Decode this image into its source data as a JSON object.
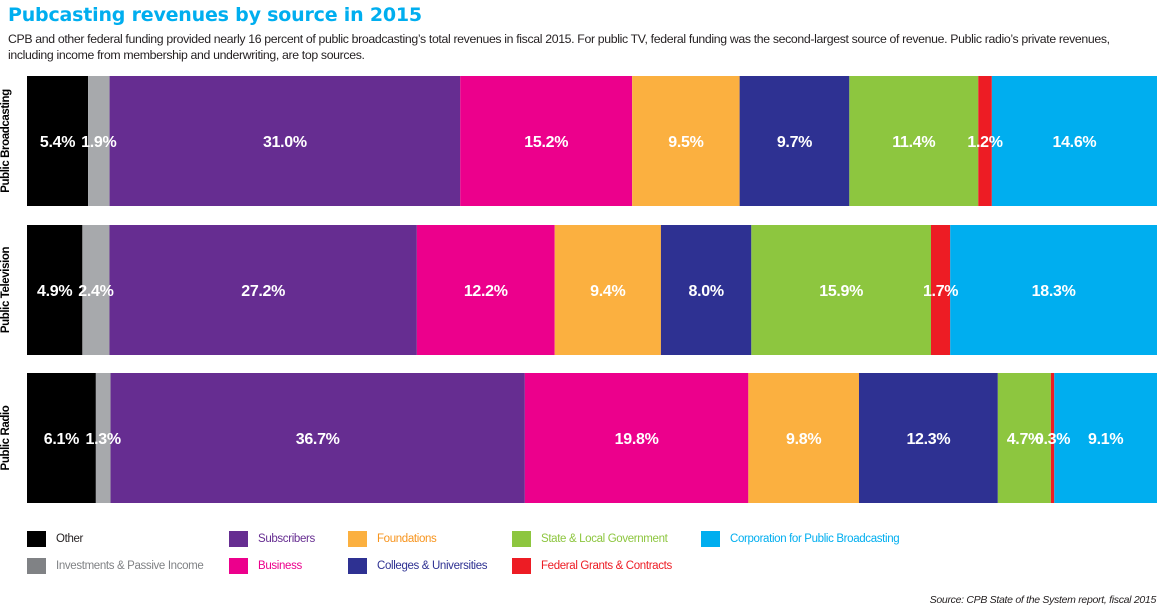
{
  "header": {
    "title": "Pubcasting revenues by source in 2015",
    "subtitle": "CPB and other federal funding provided nearly 16 percent of public broadcasting’s total revenues in fiscal 2015. For public TV, federal funding was the second-largest source of revenue. Public radio’s private revenues, including income from membership and underwriting, are top sources."
  },
  "footer": {
    "source": "Source: CPB State of the System report, fiscal 2015"
  },
  "chart_data": {
    "type": "bar",
    "orientation": "horizontal",
    "stacked": true,
    "normalized_percent": true,
    "title": "Pubcasting revenues by source in 2015",
    "xlabel": "",
    "ylabel": "",
    "categories": [
      "Public Broadcasting",
      "Public Television",
      "Public Radio"
    ],
    "series": [
      {
        "name": "Other",
        "color": "#000000",
        "values": [
          5.4,
          4.9,
          6.1
        ]
      },
      {
        "name": "Investments & Passive Income",
        "color": "#a7a9ac",
        "values": [
          1.9,
          2.4,
          1.3
        ]
      },
      {
        "name": "Subscribers",
        "color": "#662d91",
        "values": [
          31.0,
          27.2,
          36.7
        ]
      },
      {
        "name": "Business",
        "color": "#ec008c",
        "values": [
          15.2,
          12.2,
          19.8
        ]
      },
      {
        "name": "Foundations",
        "color": "#fbb040",
        "values": [
          9.5,
          9.4,
          9.8
        ]
      },
      {
        "name": "Colleges & Universities",
        "color": "#2e3192",
        "values": [
          9.7,
          8.0,
          12.3
        ]
      },
      {
        "name": "State & Local Government",
        "color": "#8dc63f",
        "values": [
          11.4,
          15.9,
          4.7
        ]
      },
      {
        "name": "Federal Grants & Contracts",
        "color": "#ed1c24",
        "values": [
          1.2,
          1.7,
          0.3
        ]
      },
      {
        "name": "Corporation for Public Broadcasting",
        "color": "#00aeef",
        "values": [
          14.6,
          18.3,
          9.1
        ]
      }
    ],
    "data_labels": [
      [
        "5.4%",
        "1.9%",
        "31.0%",
        "15.2%",
        "9.5%",
        "9.7%",
        "11.4%",
        "1.2%",
        "14.6%"
      ],
      [
        "4.9%",
        "2.4%",
        "27.2%",
        "12.2%",
        "9.4%",
        "8.0%",
        "15.9%",
        "1.7%",
        "18.3%"
      ],
      [
        "6.1%",
        "1.3%",
        "36.7%",
        "19.8%",
        "9.8%",
        "12.3%",
        "4.7%",
        "0.3%",
        "9.1%"
      ]
    ],
    "legend": {
      "placement": "bottom",
      "entries": [
        {
          "name": "Other",
          "color": "#000000",
          "label_color": "#231f20"
        },
        {
          "name": "Investments & Passive Income",
          "color": "#808285",
          "label_color": "#808285"
        },
        {
          "name": "Subscribers",
          "color": "#662d91",
          "label_color": "#662d91"
        },
        {
          "name": "Business",
          "color": "#ec008c",
          "label_color": "#ec008c"
        },
        {
          "name": "Foundations",
          "color": "#fbb040",
          "label_color": "#f7941d"
        },
        {
          "name": "Colleges & Universities",
          "color": "#2e3192",
          "label_color": "#2e3192"
        },
        {
          "name": "State & Local Government",
          "color": "#8dc63f",
          "label_color": "#8dc63f"
        },
        {
          "name": "Federal Grants & Contracts",
          "color": "#ed1c24",
          "label_color": "#ed1c24"
        },
        {
          "name": "Corporation for Public Broadcasting",
          "color": "#00aeef",
          "label_color": "#00aeef"
        }
      ]
    },
    "grid": false
  }
}
